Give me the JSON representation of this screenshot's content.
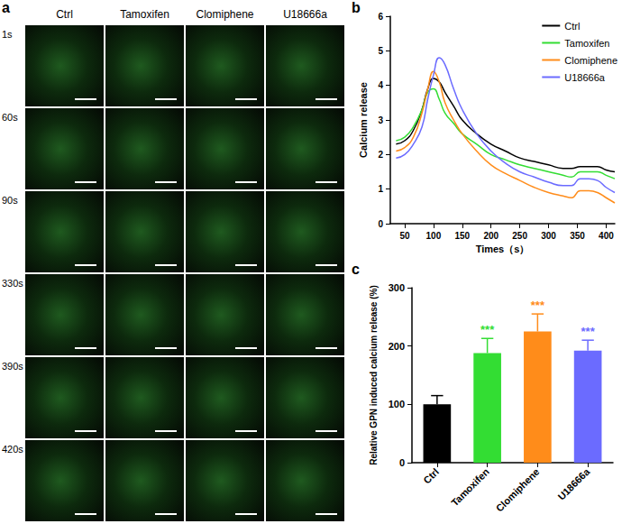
{
  "image_panel": {
    "panel_label": "a",
    "columns": [
      "Ctrl",
      "Tamoxifen",
      "Clomiphene",
      "U18666a"
    ],
    "rows": [
      "1s",
      "60s",
      "90s",
      "330s",
      "390s",
      "420s"
    ]
  },
  "chart_data": [
    {
      "type": "line",
      "panel_label": "b",
      "x_label": "Times（s）",
      "y_label": "Calcium release",
      "x": [
        35,
        50,
        65,
        80,
        90,
        100,
        110,
        120,
        135,
        150,
        175,
        200,
        225,
        250,
        275,
        300,
        325,
        340,
        355,
        370,
        385,
        400,
        415
      ],
      "series": [
        {
          "name": "Ctrl",
          "color": "#000000",
          "values": [
            2.3,
            2.4,
            2.7,
            3.3,
            3.9,
            4.2,
            4.1,
            3.8,
            3.4,
            3.0,
            2.6,
            2.3,
            2.1,
            1.9,
            1.8,
            1.7,
            1.6,
            1.6,
            1.65,
            1.65,
            1.65,
            1.55,
            1.5
          ]
        },
        {
          "name": "Tamoxifen",
          "color": "#33dd33",
          "values": [
            2.4,
            2.5,
            2.8,
            3.3,
            3.8,
            3.9,
            3.6,
            3.2,
            2.9,
            2.6,
            2.3,
            2.0,
            1.85,
            1.7,
            1.6,
            1.5,
            1.4,
            1.35,
            1.5,
            1.5,
            1.5,
            1.4,
            1.3
          ]
        },
        {
          "name": "Clomiphene",
          "color": "#ff8c1a",
          "values": [
            2.1,
            2.2,
            2.5,
            3.2,
            3.9,
            4.4,
            4.1,
            3.5,
            3.0,
            2.6,
            2.1,
            1.7,
            1.45,
            1.25,
            1.05,
            0.9,
            0.8,
            0.75,
            0.95,
            0.95,
            0.9,
            0.75,
            0.6
          ]
        },
        {
          "name": "U18666a",
          "color": "#6b6bff",
          "values": [
            1.9,
            2.0,
            2.3,
            2.8,
            3.6,
            4.3,
            4.8,
            4.6,
            3.9,
            3.3,
            2.6,
            2.1,
            1.75,
            1.5,
            1.35,
            1.2,
            1.1,
            1.1,
            1.3,
            1.3,
            1.25,
            1.05,
            0.9
          ]
        }
      ],
      "xlim": [
        25,
        415
      ],
      "xticks": [
        50,
        100,
        150,
        200,
        250,
        300,
        350,
        400
      ],
      "ylim": [
        0,
        6
      ],
      "yticks": [
        0,
        1,
        2,
        3,
        4,
        5,
        6
      ],
      "grid": false,
      "legend": "upper right"
    },
    {
      "type": "bar",
      "panel_label": "c",
      "y_label": "Relative GPN induced calcium release (%)",
      "categories": [
        "Ctrl",
        "Tamoxifen",
        "Clomiphene",
        "U18666a"
      ],
      "values": [
        100,
        188,
        225,
        192
      ],
      "errors": [
        15,
        25,
        30,
        18
      ],
      "colors": [
        "#000000",
        "#33dd33",
        "#ff8c1a",
        "#6b6bff"
      ],
      "annotations": [
        {
          "category": "Tamoxifen",
          "text": "***"
        },
        {
          "category": "Clomiphene",
          "text": "***"
        },
        {
          "category": "U18666a",
          "text": "***"
        }
      ],
      "ylim": [
        0,
        300
      ],
      "yticks": [
        0,
        100,
        200,
        300
      ],
      "grid": false
    }
  ]
}
